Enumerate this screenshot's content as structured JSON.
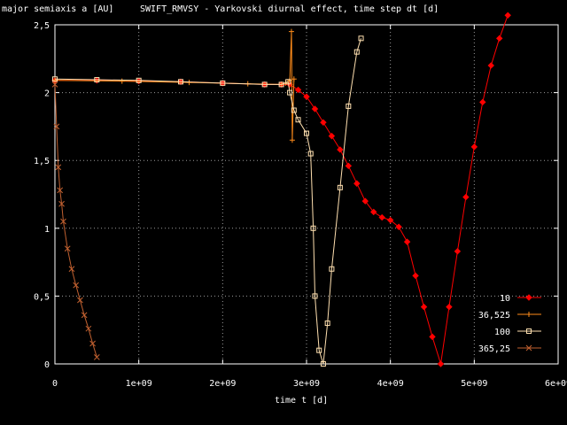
{
  "chart_data": {
    "type": "line",
    "title": "SWIFT_RMVSY - Yarkovski diurnal effect, time step dt [d]",
    "ylabel": "major semiaxis a [AU]",
    "xlabel": "time t [d]",
    "xlim": [
      0,
      6000000000
    ],
    "ylim": [
      0,
      2.5
    ],
    "grid": true,
    "legend_position": "bottom-right",
    "x_ticks": [
      {
        "value": 0,
        "label": "0"
      },
      {
        "value": 1000000000,
        "label": "1e+09"
      },
      {
        "value": 2000000000,
        "label": "2e+09"
      },
      {
        "value": 3000000000,
        "label": "3e+09"
      },
      {
        "value": 4000000000,
        "label": "4e+09"
      },
      {
        "value": 5000000000,
        "label": "5e+09"
      },
      {
        "value": 6000000000,
        "label": "6e+09"
      }
    ],
    "y_ticks": [
      {
        "value": 0,
        "label": "0"
      },
      {
        "value": 0.5,
        "label": "0,5"
      },
      {
        "value": 1,
        "label": "1"
      },
      {
        "value": 1.5,
        "label": "1,5"
      },
      {
        "value": 2,
        "label": "2"
      },
      {
        "value": 2.5,
        "label": "2,5"
      }
    ],
    "series": [
      {
        "name": "10",
        "color": "#ff0000",
        "marker": "diamond",
        "points": [
          [
            0,
            2.09
          ],
          [
            500000000,
            2.09
          ],
          [
            1000000000,
            2.085
          ],
          [
            1500000000,
            2.08
          ],
          [
            2000000000,
            2.07
          ],
          [
            2500000000,
            2.06
          ],
          [
            2700000000,
            2.06
          ],
          [
            2800000000,
            2.06
          ],
          [
            2900000000,
            2.02
          ],
          [
            3000000000,
            1.97
          ],
          [
            3100000000,
            1.88
          ],
          [
            3200000000,
            1.78
          ],
          [
            3300000000,
            1.68
          ],
          [
            3400000000,
            1.58
          ],
          [
            3500000000,
            1.46
          ],
          [
            3600000000,
            1.33
          ],
          [
            3700000000,
            1.2
          ],
          [
            3800000000,
            1.12
          ],
          [
            3900000000,
            1.08
          ],
          [
            4000000000,
            1.06
          ],
          [
            4100000000,
            1.01
          ],
          [
            4200000000,
            0.9
          ],
          [
            4300000000,
            0.65
          ],
          [
            4400000000,
            0.42
          ],
          [
            4500000000,
            0.2
          ],
          [
            4600000000,
            0
          ],
          [
            4700000000,
            0.42
          ],
          [
            4800000000,
            0.83
          ],
          [
            4900000000,
            1.23
          ],
          [
            5000000000,
            1.6
          ],
          [
            5100000000,
            1.93
          ],
          [
            5200000000,
            2.2
          ],
          [
            5300000000,
            2.4
          ],
          [
            5400000000,
            2.57
          ]
        ]
      },
      {
        "name": "36,525",
        "color": "#ff8c1a",
        "marker": "plus",
        "points": [
          [
            0,
            2.09
          ],
          [
            800000000,
            2.085
          ],
          [
            1600000000,
            2.075
          ],
          [
            2300000000,
            2.065
          ],
          [
            2700000000,
            2.06
          ],
          [
            2750000000,
            2.07
          ],
          [
            2800000000,
            2.09
          ],
          [
            2820000000,
            2.45
          ],
          [
            2830000000,
            1.65
          ],
          [
            2850000000,
            2.1
          ]
        ]
      },
      {
        "name": "100",
        "color": "#ffe0b0",
        "marker": "square",
        "points": [
          [
            0,
            2.1
          ],
          [
            500000000,
            2.095
          ],
          [
            1000000000,
            2.09
          ],
          [
            1500000000,
            2.08
          ],
          [
            2000000000,
            2.07
          ],
          [
            2500000000,
            2.06
          ],
          [
            2700000000,
            2.06
          ],
          [
            2780000000,
            2.08
          ],
          [
            2800000000,
            2.0
          ],
          [
            2850000000,
            1.87
          ],
          [
            2900000000,
            1.8
          ],
          [
            3000000000,
            1.7
          ],
          [
            3050000000,
            1.55
          ],
          [
            3080000000,
            1.0
          ],
          [
            3100000000,
            0.5
          ],
          [
            3150000000,
            0.1
          ],
          [
            3200000000,
            0
          ],
          [
            3250000000,
            0.3
          ],
          [
            3300000000,
            0.7
          ],
          [
            3400000000,
            1.3
          ],
          [
            3500000000,
            1.9
          ],
          [
            3600000000,
            2.3
          ],
          [
            3650000000,
            2.4
          ]
        ]
      },
      {
        "name": "365,25",
        "color": "#c06030",
        "marker": "cross",
        "points": [
          [
            0,
            2.06
          ],
          [
            20000000,
            1.75
          ],
          [
            40000000,
            1.45
          ],
          [
            60000000,
            1.28
          ],
          [
            80000000,
            1.18
          ],
          [
            100000000,
            1.05
          ],
          [
            150000000,
            0.85
          ],
          [
            200000000,
            0.7
          ],
          [
            250000000,
            0.58
          ],
          [
            300000000,
            0.47
          ],
          [
            350000000,
            0.36
          ],
          [
            400000000,
            0.26
          ],
          [
            450000000,
            0.15
          ],
          [
            500000000,
            0.05
          ]
        ]
      }
    ]
  }
}
